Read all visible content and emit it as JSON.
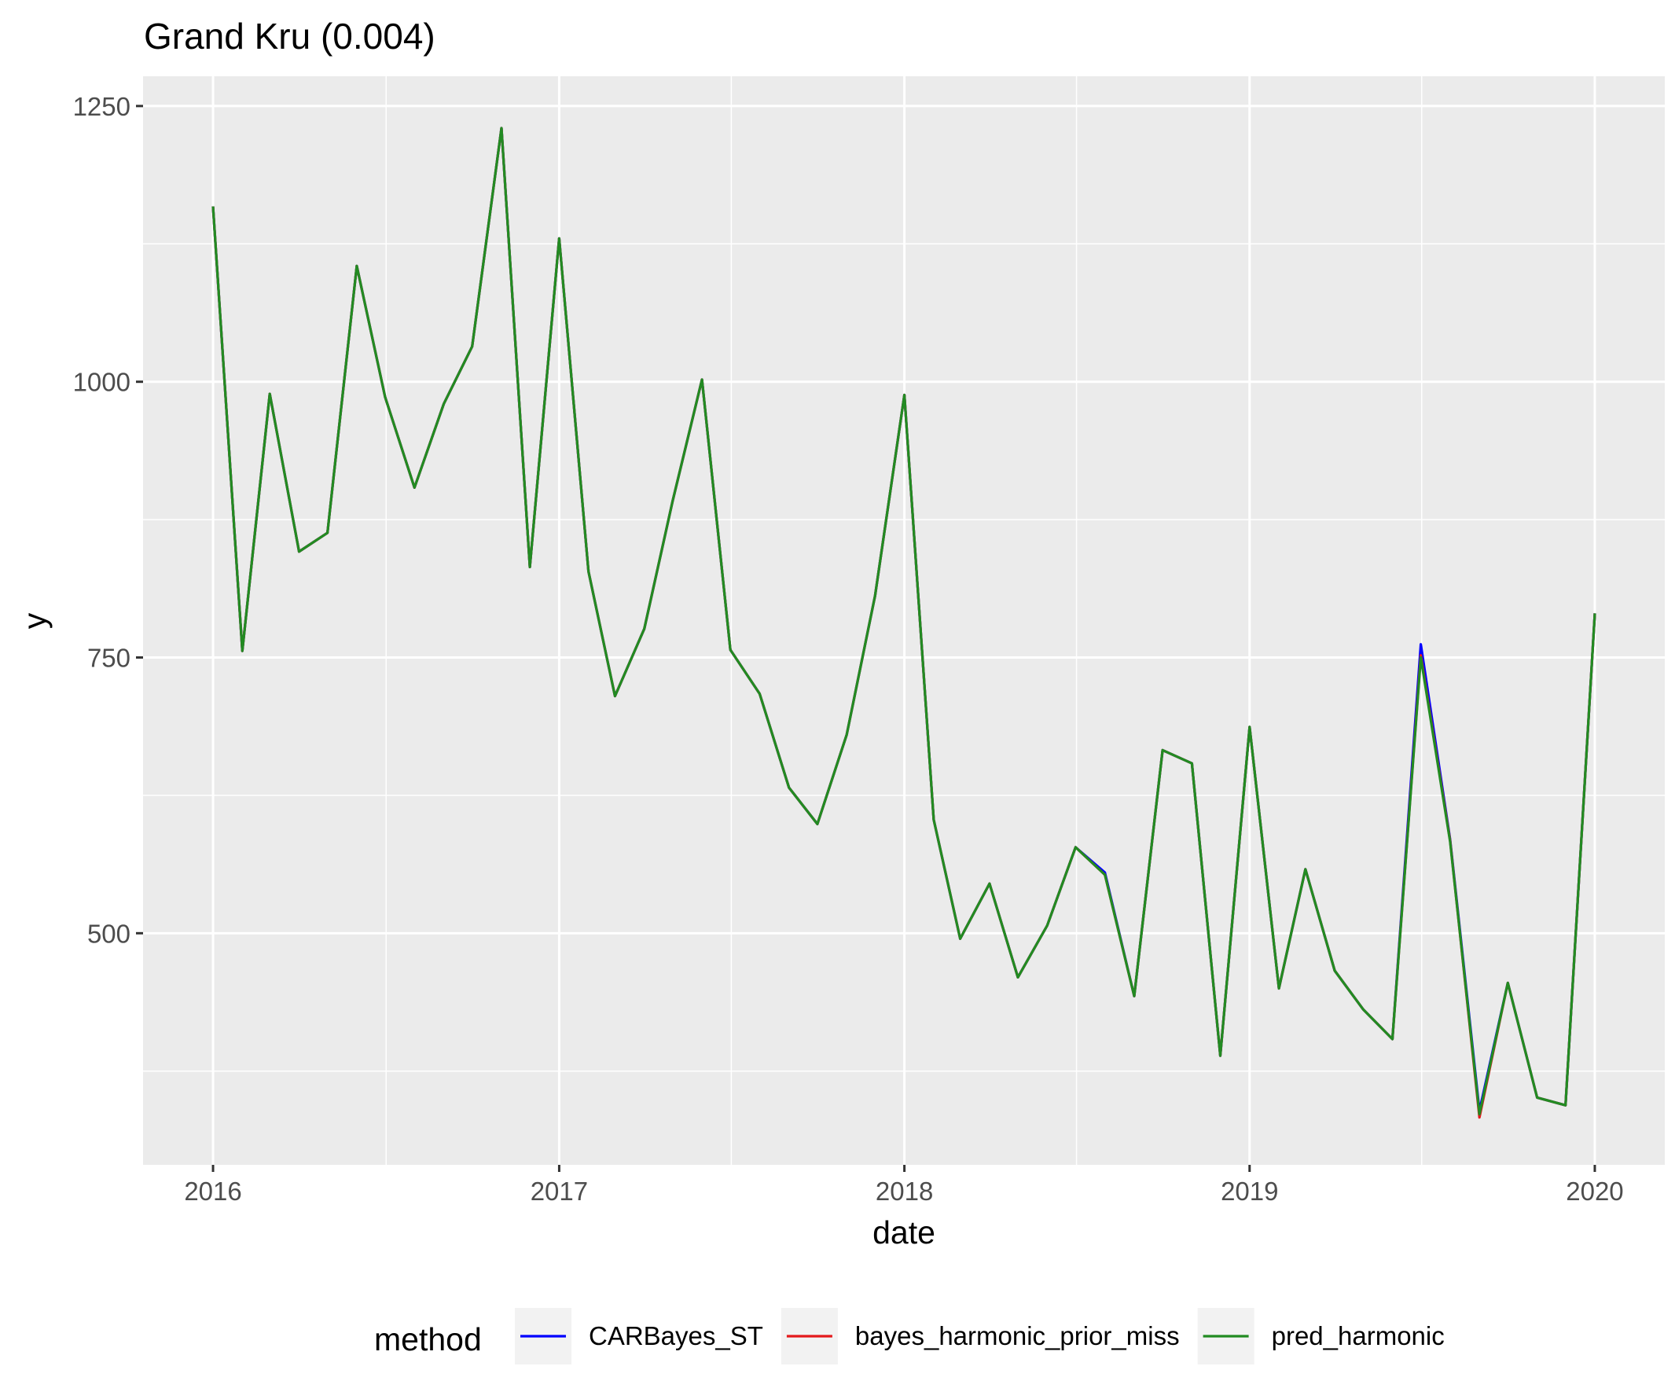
{
  "chart_data": {
    "type": "line",
    "title": "Grand Kru (0.004)",
    "xlabel": "date",
    "ylabel": "y",
    "x_ticks": [
      "2016",
      "2017",
      "2018",
      "2019",
      "2020"
    ],
    "y_ticks": [
      "500",
      "750",
      "1000",
      "1250"
    ],
    "xlim": [
      "2015-10-19",
      "2020-03-15"
    ],
    "ylim": [
      290,
      1277
    ],
    "grid": true,
    "legend_position": "bottom",
    "legend_title": "method",
    "x": [
      "2016-01",
      "2016-02",
      "2016-03",
      "2016-04",
      "2016-05",
      "2016-06",
      "2016-07",
      "2016-08",
      "2016-09",
      "2016-10",
      "2016-11",
      "2016-12",
      "2017-01",
      "2017-02",
      "2017-03",
      "2017-04",
      "2017-05",
      "2017-06",
      "2017-07",
      "2017-08",
      "2017-09",
      "2017-10",
      "2017-11",
      "2017-12",
      "2018-01",
      "2018-02",
      "2018-03",
      "2018-04",
      "2018-05",
      "2018-06",
      "2018-07",
      "2018-08",
      "2018-09",
      "2018-10",
      "2018-11",
      "2018-12",
      "2019-01",
      "2019-02",
      "2019-03",
      "2019-04",
      "2019-05",
      "2019-06",
      "2019-07",
      "2019-08",
      "2019-09",
      "2019-10",
      "2019-11",
      "2019-12",
      "2020-01"
    ],
    "series": [
      {
        "name": "CARBayes_ST",
        "color": "#0000FF",
        "values": [
          1159,
          756,
          989,
          846,
          863,
          1105,
          986,
          904,
          980,
          1032,
          1230,
          832,
          1130,
          828,
          715,
          776,
          892,
          1002,
          757,
          717,
          632,
          599,
          680,
          806,
          988,
          603,
          495,
          545,
          460,
          507,
          578,
          555,
          443,
          666,
          654,
          389,
          687,
          450,
          558,
          466,
          431,
          404,
          762,
          585,
          339,
          455,
          351,
          344,
          790
        ]
      },
      {
        "name": "bayes_harmonic_prior_miss",
        "color": "#E41A1C",
        "values": [
          1159,
          756,
          989,
          846,
          863,
          1105,
          986,
          904,
          980,
          1032,
          1230,
          832,
          1130,
          828,
          715,
          776,
          892,
          1002,
          757,
          717,
          632,
          599,
          680,
          806,
          988,
          603,
          495,
          545,
          460,
          507,
          578,
          553,
          443,
          666,
          654,
          389,
          687,
          450,
          558,
          466,
          431,
          404,
          752,
          584,
          333,
          455,
          351,
          344,
          790
        ]
      },
      {
        "name": "pred_harmonic",
        "color": "#228B22",
        "values": [
          1159,
          756,
          989,
          846,
          863,
          1105,
          986,
          904,
          980,
          1032,
          1230,
          832,
          1130,
          828,
          715,
          776,
          892,
          1002,
          757,
          717,
          632,
          599,
          680,
          806,
          988,
          603,
          495,
          545,
          460,
          507,
          578,
          553,
          443,
          666,
          654,
          389,
          687,
          450,
          558,
          466,
          431,
          404,
          750,
          583,
          336,
          455,
          351,
          344,
          790
        ]
      }
    ]
  }
}
